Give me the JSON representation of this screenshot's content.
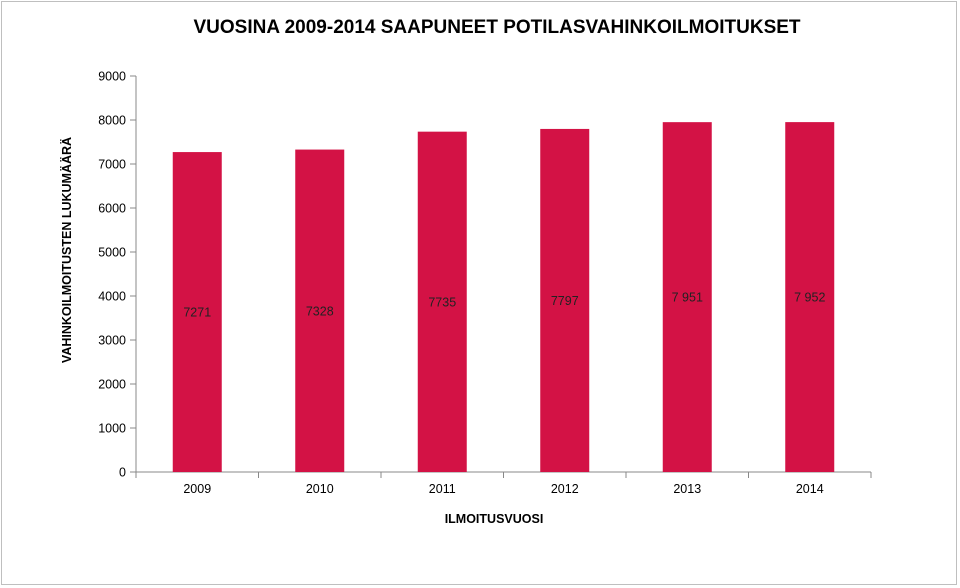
{
  "chart_data": {
    "type": "bar",
    "title": "VUOSINA 2009-2014 SAAPUNEET POTILASVAHINKOILMOITUKSET",
    "xlabel": "ILMOITUSVUOSI",
    "ylabel": "VAHINKOILMOITUSTEN LUKUMÄÄRÄ",
    "categories": [
      "2009",
      "2010",
      "2011",
      "2012",
      "2013",
      "2014"
    ],
    "values": [
      7271,
      7328,
      7735,
      7797,
      7951,
      7952
    ],
    "data_labels": [
      "7271",
      "7328",
      "7735",
      "7797",
      "7 951",
      "7 952"
    ],
    "ylim": [
      0,
      9000
    ],
    "yticks": [
      "0",
      "1000",
      "2000",
      "3000",
      "4000",
      "5000",
      "6000",
      "7000",
      "8000",
      "9000"
    ],
    "grid": false,
    "legend": "none",
    "bar_color": "#d31245"
  }
}
